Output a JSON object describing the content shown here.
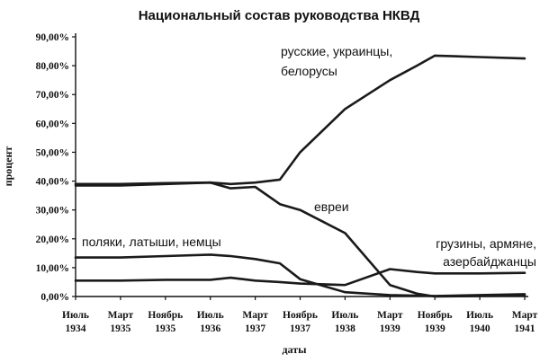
{
  "chart_data": {
    "type": "line",
    "title": "Национальный состав руководства НКВД",
    "xlabel": "даты",
    "ylabel": "процент",
    "ylim": [
      0,
      90
    ],
    "yticks": [
      "0,00%",
      "10,00%",
      "20,00%",
      "30,00%",
      "40,00%",
      "50,00%",
      "60,00%",
      "70,00%",
      "80,00%",
      "90,00%"
    ],
    "categories": [
      [
        "Июль",
        "1934"
      ],
      [
        "Март",
        "1935"
      ],
      [
        "Ноябрь",
        "1935"
      ],
      [
        "Июль",
        "1936"
      ],
      [
        "Март",
        "1937"
      ],
      [
        "Ноябрь",
        "1937"
      ],
      [
        "Июль",
        "1938"
      ],
      [
        "Март",
        "1939"
      ],
      [
        "Ноябрь",
        "1939"
      ],
      [
        "Июль",
        "1940"
      ],
      [
        "Март",
        "1941"
      ]
    ],
    "grid": false,
    "series": [
      {
        "name": "русские, украинцы, белорусы",
        "annotation": [
          "русские, украинцы,",
          "белорусы"
        ],
        "x": [
          0,
          1,
          2,
          3,
          3.45,
          4,
          4.55,
          5,
          6,
          7,
          7.6,
          8,
          9,
          10
        ],
        "values": [
          39,
          39,
          39.3,
          39.5,
          39,
          39.5,
          40.5,
          50,
          65,
          75,
          80,
          83.5,
          83,
          82.5
        ]
      },
      {
        "name": "евреи",
        "annotation": [
          "евреи"
        ],
        "x": [
          0,
          1,
          2,
          3,
          3.45,
          4,
          4.55,
          5,
          6,
          7,
          7.6,
          8,
          9,
          10
        ],
        "values": [
          38.5,
          38.5,
          39,
          39.5,
          37.5,
          38,
          32,
          30,
          22,
          4,
          1,
          0,
          0.2,
          0.3
        ]
      },
      {
        "name": "поляки, латыши, немцы",
        "annotation": [
          "поляки, латыши, немцы"
        ],
        "x": [
          0,
          1,
          2,
          3,
          3.45,
          4,
          4.55,
          5,
          6,
          7,
          7.6,
          8,
          9,
          10
        ],
        "values": [
          13.5,
          13.5,
          14,
          14.5,
          14,
          13,
          11.5,
          6,
          1.5,
          0.5,
          0.3,
          0.2,
          0.5,
          0.8
        ]
      },
      {
        "name": "грузины, армяне, азербайджанцы",
        "annotation": [
          "грузины, армяне,",
          "азербайджанцы"
        ],
        "x": [
          0,
          1,
          2,
          3,
          3.45,
          4,
          4.55,
          5,
          6,
          7,
          7.6,
          8,
          9,
          10
        ],
        "values": [
          5.5,
          5.5,
          5.8,
          5.8,
          6.5,
          5.5,
          5,
          4.5,
          4,
          9.5,
          8.5,
          8,
          8,
          8.2
        ]
      }
    ]
  }
}
